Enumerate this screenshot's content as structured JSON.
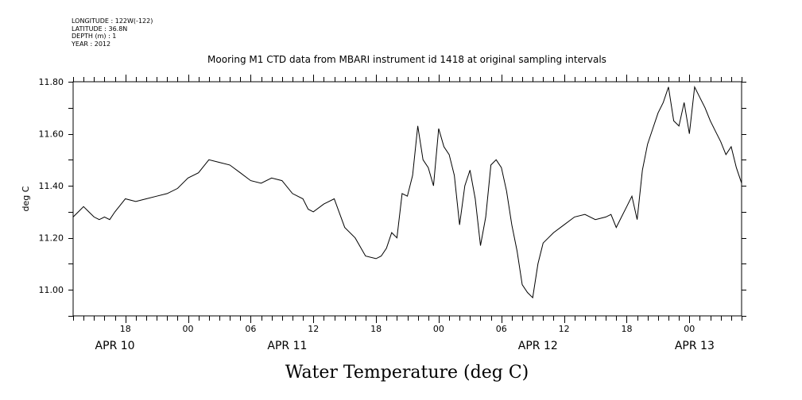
{
  "header": {
    "longitude": "LONGITUDE : 122W(-122)",
    "latitude": "LATITUDE : 36.8N",
    "depth": "DEPTH (m) : 1",
    "year": "YEAR : 2012"
  },
  "chart_data": {
    "type": "line",
    "title": "Mooring M1 CTD data from MBARI instrument id 1418 at original sampling intervals",
    "xlabel": "Water Temperature (deg C)",
    "ylabel": "deg C",
    "xlim": [
      "2012-04-10T13:00",
      "2012-04-13T05:00"
    ],
    "ylim": [
      10.9,
      11.8
    ],
    "yticks": [
      "11.00",
      "11.20",
      "11.40",
      "11.60",
      "11.80"
    ],
    "xticks": [
      {
        "t": "2012-04-10T18:00",
        "label": "18"
      },
      {
        "t": "2012-04-11T00:00",
        "label": "00"
      },
      {
        "t": "2012-04-11T06:00",
        "label": "06"
      },
      {
        "t": "2012-04-11T12:00",
        "label": "12"
      },
      {
        "t": "2012-04-11T18:00",
        "label": "18"
      },
      {
        "t": "2012-04-12T00:00",
        "label": "00"
      },
      {
        "t": "2012-04-12T06:00",
        "label": "06"
      },
      {
        "t": "2012-04-12T12:00",
        "label": "12"
      },
      {
        "t": "2012-04-12T18:00",
        "label": "18"
      },
      {
        "t": "2012-04-13T00:00",
        "label": "00"
      }
    ],
    "day_labels": [
      {
        "t": "2012-04-10T17:00",
        "label": "APR 10"
      },
      {
        "t": "2012-04-11T09:30",
        "label": "APR 11"
      },
      {
        "t": "2012-04-12T09:30",
        "label": "APR 12"
      },
      {
        "t": "2012-04-13T00:30",
        "label": "APR 13"
      }
    ],
    "series": [
      {
        "x": [
          "2012-04-10T13:00",
          "2012-04-10T13:30",
          "2012-04-10T14:00",
          "2012-04-10T14:30",
          "2012-04-10T15:00",
          "2012-04-10T15:30",
          "2012-04-10T16:00",
          "2012-04-10T16:30",
          "2012-04-10T17:00",
          "2012-04-10T18:00",
          "2012-04-10T19:00",
          "2012-04-10T20:00",
          "2012-04-10T21:00",
          "2012-04-10T22:00",
          "2012-04-10T23:00",
          "2012-04-11T00:00",
          "2012-04-11T01:00",
          "2012-04-11T02:00",
          "2012-04-11T03:00",
          "2012-04-11T04:00",
          "2012-04-11T05:00",
          "2012-04-11T06:00",
          "2012-04-11T07:00",
          "2012-04-11T08:00",
          "2012-04-11T09:00",
          "2012-04-11T10:00",
          "2012-04-11T11:00",
          "2012-04-11T11:30",
          "2012-04-11T12:00",
          "2012-04-11T13:00",
          "2012-04-11T14:00",
          "2012-04-11T15:00",
          "2012-04-11T16:00",
          "2012-04-11T17:00",
          "2012-04-11T18:00",
          "2012-04-11T18:30",
          "2012-04-11T19:00",
          "2012-04-11T19:30",
          "2012-04-11T20:00",
          "2012-04-11T20:30",
          "2012-04-11T21:00",
          "2012-04-11T21:30",
          "2012-04-11T22:00",
          "2012-04-11T22:30",
          "2012-04-11T23:00",
          "2012-04-11T23:30",
          "2012-04-12T00:00",
          "2012-04-12T00:30",
          "2012-04-12T01:00",
          "2012-04-12T01:30",
          "2012-04-12T02:00",
          "2012-04-12T02:30",
          "2012-04-12T03:00",
          "2012-04-12T03:30",
          "2012-04-12T04:00",
          "2012-04-12T04:30",
          "2012-04-12T05:00",
          "2012-04-12T05:30",
          "2012-04-12T06:00",
          "2012-04-12T06:30",
          "2012-04-12T07:00",
          "2012-04-12T07:30",
          "2012-04-12T08:00",
          "2012-04-12T08:30",
          "2012-04-12T09:00",
          "2012-04-12T09:30",
          "2012-04-12T10:00",
          "2012-04-12T10:30",
          "2012-04-12T11:00",
          "2012-04-12T12:00",
          "2012-04-12T13:00",
          "2012-04-12T14:00",
          "2012-04-12T15:00",
          "2012-04-12T16:00",
          "2012-04-12T16:30",
          "2012-04-12T17:00",
          "2012-04-12T17:30",
          "2012-04-12T18:00",
          "2012-04-12T18:30",
          "2012-04-12T19:00",
          "2012-04-12T19:30",
          "2012-04-12T20:00",
          "2012-04-12T20:30",
          "2012-04-12T21:00",
          "2012-04-12T21:30",
          "2012-04-12T22:00",
          "2012-04-12T22:30",
          "2012-04-12T23:00",
          "2012-04-12T23:30",
          "2012-04-13T00:00",
          "2012-04-13T00:30",
          "2012-04-13T01:00",
          "2012-04-13T01:30",
          "2012-04-13T02:00",
          "2012-04-13T02:30",
          "2012-04-13T03:00",
          "2012-04-13T03:30",
          "2012-04-13T04:00",
          "2012-04-13T04:30",
          "2012-04-13T05:00"
        ],
        "y": [
          11.28,
          11.3,
          11.32,
          11.3,
          11.28,
          11.27,
          11.28,
          11.27,
          11.3,
          11.35,
          11.34,
          11.35,
          11.36,
          11.37,
          11.39,
          11.43,
          11.45,
          11.5,
          11.49,
          11.48,
          11.45,
          11.42,
          11.41,
          11.43,
          11.42,
          11.37,
          11.35,
          11.31,
          11.3,
          11.33,
          11.35,
          11.24,
          11.2,
          11.13,
          11.12,
          11.13,
          11.16,
          11.22,
          11.2,
          11.37,
          11.36,
          11.44,
          11.63,
          11.5,
          11.47,
          11.4,
          11.62,
          11.55,
          11.52,
          11.44,
          11.25,
          11.4,
          11.46,
          11.35,
          11.17,
          11.28,
          11.48,
          11.5,
          11.47,
          11.38,
          11.25,
          11.15,
          11.02,
          10.99,
          10.97,
          11.1,
          11.18,
          11.2,
          11.22,
          11.25,
          11.28,
          11.29,
          11.27,
          11.28,
          11.29,
          11.24,
          11.28,
          11.32,
          11.36,
          11.27,
          11.46,
          11.56,
          11.62,
          11.68,
          11.72,
          11.78,
          11.65,
          11.63,
          11.72,
          11.6,
          11.78,
          11.74,
          11.7,
          11.65,
          11.61,
          11.57,
          11.52,
          11.55,
          11.47,
          11.41
        ]
      }
    ],
    "grid": false,
    "legend": "none"
  }
}
